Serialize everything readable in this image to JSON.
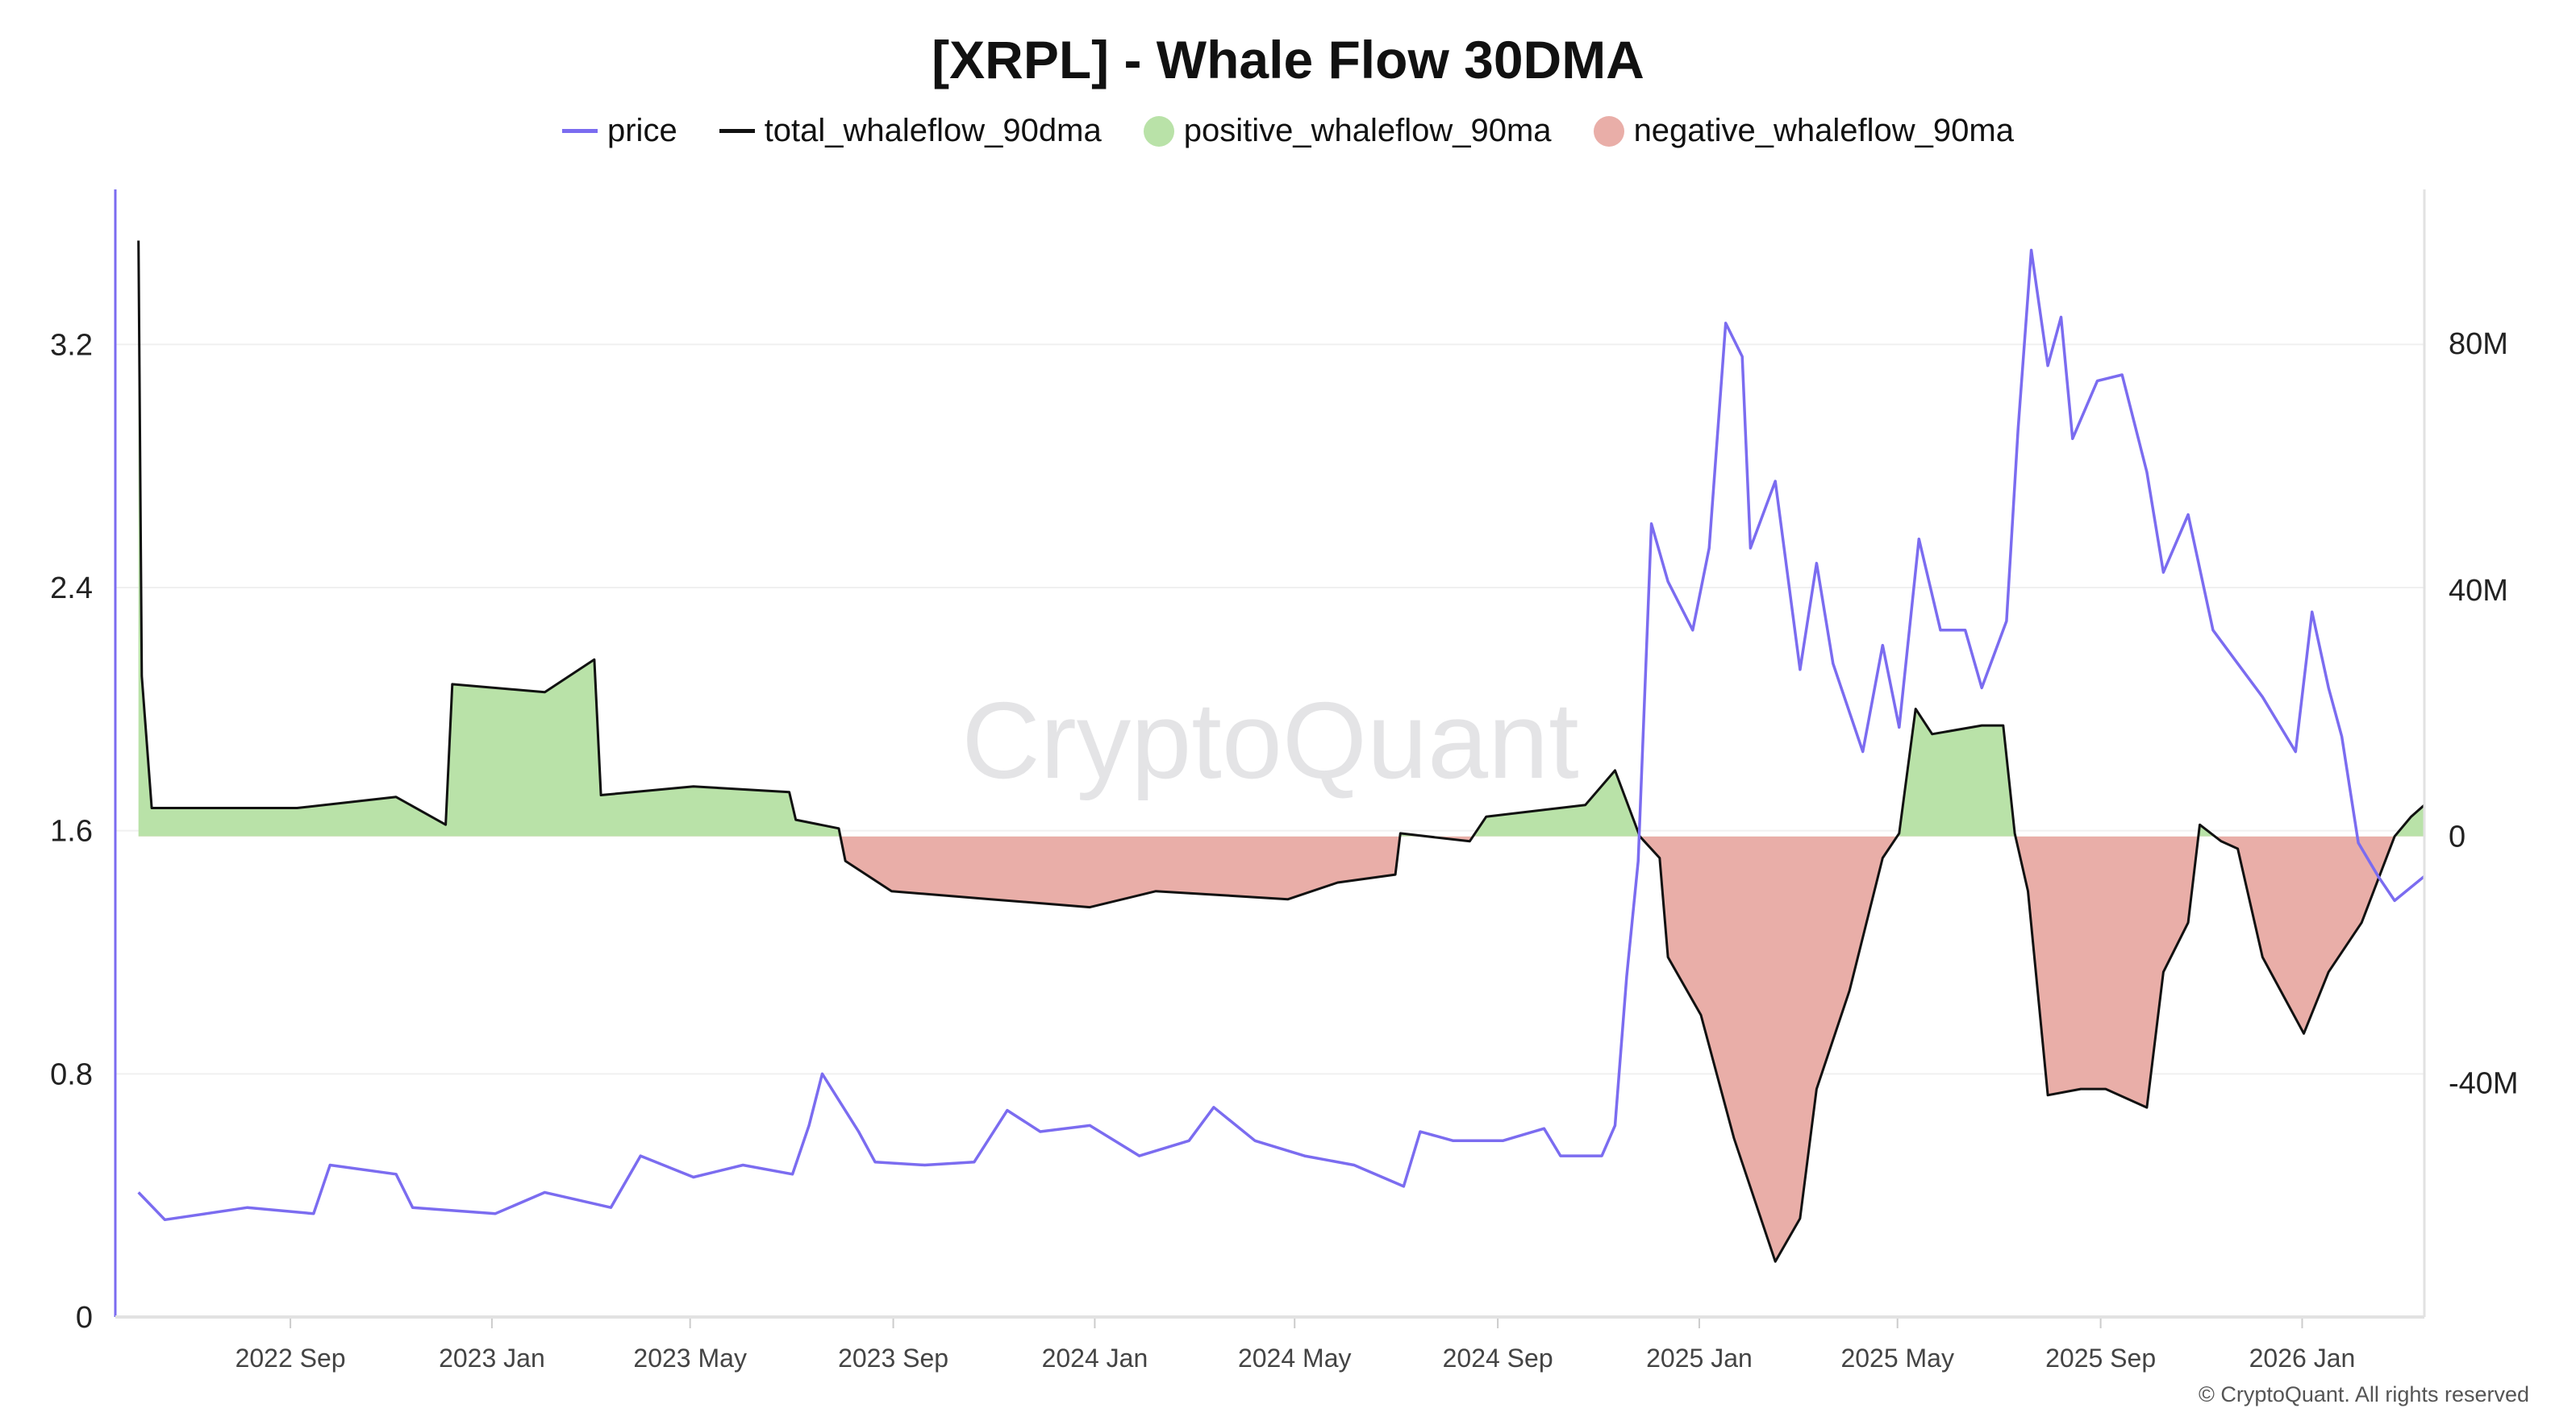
{
  "chart_data": {
    "type": "line",
    "title": "[XRPL] - Whale Flow 30DMA",
    "watermark": "CryptoQuant",
    "copyright": "© CryptoQuant. All rights reserved",
    "legend_position": "top",
    "grid": true,
    "legend": [
      {
        "name": "price",
        "kind": "line",
        "color": "#7b6cf0"
      },
      {
        "name": "total_whaleflow_90dma",
        "kind": "line",
        "color": "#111111"
      },
      {
        "name": "positive_whaleflow_90ma",
        "kind": "area",
        "color": "#b9e2a8"
      },
      {
        "name": "negative_whaleflow_90ma",
        "kind": "area",
        "color": "#e9aea8"
      }
    ],
    "x_axis": {
      "type": "date",
      "range": [
        "2022-05-18",
        "2026-03-16"
      ],
      "ticks": [
        {
          "date": "2022-09-01",
          "label": "2022 Sep"
        },
        {
          "date": "2023-01-01",
          "label": "2023 Jan"
        },
        {
          "date": "2023-05-01",
          "label": "2023 May"
        },
        {
          "date": "2023-09-01",
          "label": "2023 Sep"
        },
        {
          "date": "2024-01-01",
          "label": "2024 Jan"
        },
        {
          "date": "2024-05-01",
          "label": "2024 May"
        },
        {
          "date": "2024-09-01",
          "label": "2024 Sep"
        },
        {
          "date": "2025-01-01",
          "label": "2025 Jan"
        },
        {
          "date": "2025-05-01",
          "label": "2025 May"
        },
        {
          "date": "2025-09-01",
          "label": "2025 Sep"
        },
        {
          "date": "2026-01-01",
          "label": "2026 Jan"
        }
      ]
    },
    "y_left": {
      "series": "price",
      "ylim": [
        0,
        3.71
      ],
      "ticks": [
        {
          "v": 0,
          "label": "0"
        },
        {
          "v": 0.8,
          "label": "0.8"
        },
        {
          "v": 1.6,
          "label": "1.6"
        },
        {
          "v": 2.4,
          "label": "2.4"
        },
        {
          "v": 3.2,
          "label": "3.2"
        }
      ]
    },
    "y_right": {
      "series": "total_whaleflow_90dma",
      "unit": "M",
      "ylim": [
        -78,
        105
      ],
      "ticks": [
        {
          "v": -40,
          "label": "-40M"
        },
        {
          "v": 0,
          "label": "0"
        },
        {
          "v": 40,
          "label": "40M"
        },
        {
          "v": 80,
          "label": "80M"
        }
      ]
    },
    "price": [
      [
        "2022-06-01",
        0.41
      ],
      [
        "2022-06-17",
        0.32
      ],
      [
        "2022-08-06",
        0.36
      ],
      [
        "2022-09-15",
        0.34
      ],
      [
        "2022-09-25",
        0.5
      ],
      [
        "2022-11-04",
        0.47
      ],
      [
        "2022-11-14",
        0.36
      ],
      [
        "2023-01-03",
        0.34
      ],
      [
        "2023-02-02",
        0.41
      ],
      [
        "2023-03-14",
        0.36
      ],
      [
        "2023-04-01",
        0.53
      ],
      [
        "2023-05-03",
        0.46
      ],
      [
        "2023-06-02",
        0.5
      ],
      [
        "2023-07-02",
        0.47
      ],
      [
        "2023-07-12",
        0.63
      ],
      [
        "2023-07-20",
        0.8
      ],
      [
        "2023-08-11",
        0.61
      ],
      [
        "2023-08-21",
        0.51
      ],
      [
        "2023-09-20",
        0.5
      ],
      [
        "2023-10-20",
        0.51
      ],
      [
        "2023-11-09",
        0.68
      ],
      [
        "2023-11-29",
        0.61
      ],
      [
        "2023-12-29",
        0.63
      ],
      [
        "2024-01-28",
        0.53
      ],
      [
        "2024-02-27",
        0.58
      ],
      [
        "2024-03-13",
        0.69
      ],
      [
        "2024-04-07",
        0.58
      ],
      [
        "2024-05-07",
        0.53
      ],
      [
        "2024-06-06",
        0.5
      ],
      [
        "2024-07-06",
        0.43
      ],
      [
        "2024-07-16",
        0.61
      ],
      [
        "2024-08-05",
        0.58
      ],
      [
        "2024-09-04",
        0.58
      ],
      [
        "2024-09-29",
        0.62
      ],
      [
        "2024-10-09",
        0.53
      ],
      [
        "2024-11-03",
        0.53
      ],
      [
        "2024-11-11",
        0.63
      ],
      [
        "2024-11-18",
        1.12
      ],
      [
        "2024-11-25",
        1.5
      ],
      [
        "2024-12-03",
        2.61
      ],
      [
        "2024-12-13",
        2.42
      ],
      [
        "2024-12-28",
        2.26
      ],
      [
        "2025-01-07",
        2.53
      ],
      [
        "2025-01-17",
        3.27
      ],
      [
        "2025-01-27",
        3.16
      ],
      [
        "2025-02-01",
        2.53
      ],
      [
        "2025-02-16",
        2.75
      ],
      [
        "2025-03-03",
        2.13
      ],
      [
        "2025-03-13",
        2.48
      ],
      [
        "2025-03-23",
        2.15
      ],
      [
        "2025-04-10",
        1.86
      ],
      [
        "2025-04-22",
        2.21
      ],
      [
        "2025-05-02",
        1.94
      ],
      [
        "2025-05-14",
        2.56
      ],
      [
        "2025-05-27",
        2.26
      ],
      [
        "2025-06-11",
        2.26
      ],
      [
        "2025-06-21",
        2.07
      ],
      [
        "2025-07-06",
        2.29
      ],
      [
        "2025-07-13",
        2.92
      ],
      [
        "2025-07-21",
        3.51
      ],
      [
        "2025-07-31",
        3.13
      ],
      [
        "2025-08-08",
        3.29
      ],
      [
        "2025-08-15",
        2.89
      ],
      [
        "2025-08-30",
        3.08
      ],
      [
        "2025-09-14",
        3.1
      ],
      [
        "2025-09-29",
        2.78
      ],
      [
        "2025-10-09",
        2.45
      ],
      [
        "2025-10-24",
        2.64
      ],
      [
        "2025-11-08",
        2.26
      ],
      [
        "2025-11-23",
        2.15
      ],
      [
        "2025-12-08",
        2.04
      ],
      [
        "2025-12-28",
        1.86
      ],
      [
        "2026-01-07",
        2.32
      ],
      [
        "2026-01-17",
        2.07
      ],
      [
        "2026-01-25",
        1.91
      ],
      [
        "2026-02-04",
        1.56
      ],
      [
        "2026-02-16",
        1.45
      ],
      [
        "2026-02-26",
        1.37
      ],
      [
        "2026-03-16",
        1.45
      ]
    ],
    "total_whaleflow_90dma": [
      [
        "2022-06-01",
        96.7
      ],
      [
        "2022-06-03",
        26.0
      ],
      [
        "2022-06-09",
        4.6
      ],
      [
        "2022-07-17",
        4.6
      ],
      [
        "2022-09-05",
        4.6
      ],
      [
        "2022-11-04",
        6.4
      ],
      [
        "2022-12-04",
        1.9
      ],
      [
        "2022-12-08",
        24.7
      ],
      [
        "2023-02-02",
        23.4
      ],
      [
        "2023-03-04",
        28.7
      ],
      [
        "2023-03-08",
        6.7
      ],
      [
        "2023-05-03",
        8.1
      ],
      [
        "2023-06-30",
        7.2
      ],
      [
        "2023-07-04",
        2.7
      ],
      [
        "2023-07-30",
        1.3
      ],
      [
        "2023-08-03",
        -4.0
      ],
      [
        "2023-08-31",
        -8.9
      ],
      [
        "2023-10-30",
        -10.2
      ],
      [
        "2023-12-29",
        -11.5
      ],
      [
        "2024-02-07",
        -8.9
      ],
      [
        "2024-04-27",
        -10.2
      ],
      [
        "2024-05-27",
        -7.5
      ],
      [
        "2024-07-01",
        -6.2
      ],
      [
        "2024-07-04",
        0.5
      ],
      [
        "2024-08-15",
        -0.8
      ],
      [
        "2024-08-25",
        3.2
      ],
      [
        "2024-10-24",
        5.1
      ],
      [
        "2024-11-11",
        10.7
      ],
      [
        "2024-11-26",
        0.0
      ],
      [
        "2024-12-08",
        -3.5
      ],
      [
        "2024-12-13",
        -19.6
      ],
      [
        "2025-01-02",
        -29.0
      ],
      [
        "2025-01-22",
        -49.0
      ],
      [
        "2025-02-16",
        -69.0
      ],
      [
        "2025-03-03",
        -62.0
      ],
      [
        "2025-03-13",
        -41.0
      ],
      [
        "2025-04-02",
        -25.0
      ],
      [
        "2025-04-22",
        -3.5
      ],
      [
        "2025-05-02",
        0.5
      ],
      [
        "2025-05-12",
        20.7
      ],
      [
        "2025-05-22",
        16.6
      ],
      [
        "2025-06-21",
        18.0
      ],
      [
        "2025-07-04",
        18.0
      ],
      [
        "2025-07-11",
        0.5
      ],
      [
        "2025-07-19",
        -8.9
      ],
      [
        "2025-07-31",
        -42.0
      ],
      [
        "2025-08-20",
        -41.0
      ],
      [
        "2025-09-04",
        -41.0
      ],
      [
        "2025-09-29",
        -44.0
      ],
      [
        "2025-10-09",
        -22.0
      ],
      [
        "2025-10-24",
        -14.0
      ],
      [
        "2025-10-31",
        1.9
      ],
      [
        "2025-11-13",
        -0.8
      ],
      [
        "2025-11-23",
        -2.0
      ],
      [
        "2025-12-08",
        -19.6
      ],
      [
        "2026-01-02",
        -32.0
      ],
      [
        "2026-01-17",
        -22.0
      ],
      [
        "2026-02-06",
        -14.0
      ],
      [
        "2026-02-26",
        0.0
      ],
      [
        "2026-03-08",
        3.2
      ],
      [
        "2026-03-16",
        5.1
      ]
    ]
  }
}
